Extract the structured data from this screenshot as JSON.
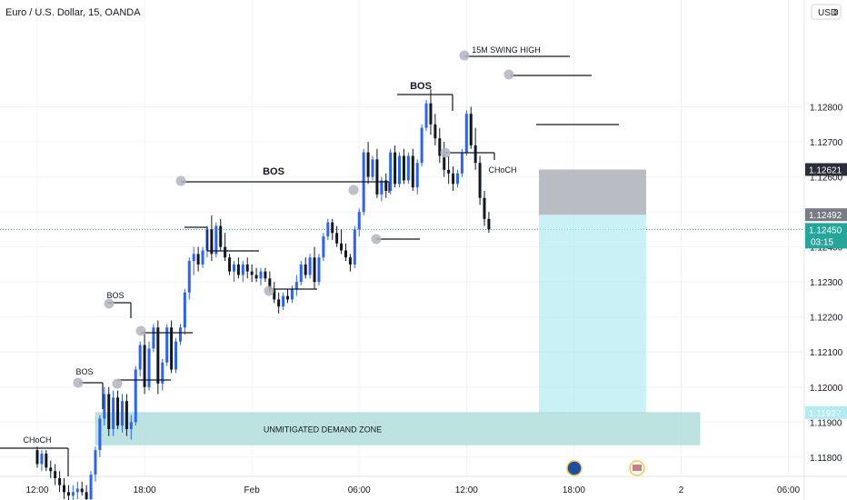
{
  "chart_data": {
    "type": "candlestick",
    "title": "Euro / U.S. Dollar, 15, OANDA",
    "currency": "USD",
    "currency_badge": "0",
    "ylim": [
      1.11745,
      1.13105
    ],
    "grid": true,
    "y_ticks": [
      {
        "label": "1.12800",
        "v": 1.128
      },
      {
        "label": "1.12700",
        "v": 1.127
      },
      {
        "label": "1.12600",
        "v": 1.126
      },
      {
        "label": "1.12400",
        "v": 1.124
      },
      {
        "label": "1.12300",
        "v": 1.123
      },
      {
        "label": "1.12200",
        "v": 1.122
      },
      {
        "label": "1.12100",
        "v": 1.121
      },
      {
        "label": "1.12000",
        "v": 1.12
      },
      {
        "label": "1.11900",
        "v": 1.119
      },
      {
        "label": "1.11800",
        "v": 1.118
      }
    ],
    "x_ticks": [
      {
        "label": "12:00",
        "bar": 0
      },
      {
        "label": "18:00",
        "bar": 24
      },
      {
        "label": "Feb",
        "bar": 48
      },
      {
        "label": "06:00",
        "bar": 72
      },
      {
        "label": "12:00",
        "bar": 96
      },
      {
        "label": "18:00",
        "bar": 120
      },
      {
        "label": "2",
        "bar": 144
      },
      {
        "label": "06:00",
        "bar": 168
      }
    ],
    "candles": [
      [
        1.1182,
        1.1183,
        1.1177,
        1.1178
      ],
      [
        1.1178,
        1.1182,
        1.1176,
        1.1181
      ],
      [
        1.1181,
        1.1182,
        1.1176,
        1.1177
      ],
      [
        1.1177,
        1.1179,
        1.1174,
        1.1176
      ],
      [
        1.1176,
        1.1178,
        1.1172,
        1.1174
      ],
      [
        1.1174,
        1.1176,
        1.117,
        1.1172
      ],
      [
        1.1172,
        1.1174,
        1.1168,
        1.117
      ],
      [
        1.117,
        1.1172,
        1.1167,
        1.1169
      ],
      [
        1.1169,
        1.1172,
        1.1167,
        1.117
      ],
      [
        1.117,
        1.1173,
        1.1168,
        1.1171
      ],
      [
        1.1171,
        1.1173,
        1.1169,
        1.117
      ],
      [
        1.117,
        1.1172,
        1.1167,
        1.1168
      ],
      [
        1.1168,
        1.1176,
        1.1166,
        1.1175
      ],
      [
        1.1175,
        1.1183,
        1.1173,
        1.1182
      ],
      [
        1.1182,
        1.1192,
        1.118,
        1.1191
      ],
      [
        1.1191,
        1.12,
        1.1189,
        1.1198
      ],
      [
        1.1198,
        1.12,
        1.1186,
        1.1188
      ],
      [
        1.1188,
        1.1199,
        1.1186,
        1.1197
      ],
      [
        1.1197,
        1.1199,
        1.1188,
        1.1189
      ],
      [
        1.1189,
        1.1198,
        1.1187,
        1.1196
      ],
      [
        1.1196,
        1.1198,
        1.1186,
        1.1188
      ],
      [
        1.1188,
        1.1192,
        1.1185,
        1.119
      ],
      [
        1.119,
        1.1206,
        1.1189,
        1.1205
      ],
      [
        1.1205,
        1.1213,
        1.1203,
        1.1212
      ],
      [
        1.1212,
        1.1216,
        1.1198,
        1.12
      ],
      [
        1.12,
        1.1213,
        1.1199,
        1.1211
      ],
      [
        1.1211,
        1.1218,
        1.121,
        1.1217
      ],
      [
        1.1217,
        1.1219,
        1.1198,
        1.1201
      ],
      [
        1.1201,
        1.1208,
        1.1199,
        1.1207
      ],
      [
        1.1207,
        1.1218,
        1.1206,
        1.1217
      ],
      [
        1.1217,
        1.1219,
        1.1204,
        1.1205
      ],
      [
        1.1205,
        1.1214,
        1.1204,
        1.1213
      ],
      [
        1.1213,
        1.1218,
        1.1212,
        1.1217
      ],
      [
        1.1217,
        1.1228,
        1.1215,
        1.1227
      ],
      [
        1.1227,
        1.1237,
        1.1225,
        1.1236
      ],
      [
        1.1236,
        1.124,
        1.1232,
        1.1238
      ],
      [
        1.1238,
        1.124,
        1.1233,
        1.1235
      ],
      [
        1.1235,
        1.124,
        1.1234,
        1.1239
      ],
      [
        1.1239,
        1.1246,
        1.1237,
        1.1245
      ],
      [
        1.1245,
        1.1249,
        1.1236,
        1.1238
      ],
      [
        1.1238,
        1.1247,
        1.1237,
        1.1246
      ],
      [
        1.1246,
        1.1248,
        1.1239,
        1.124
      ],
      [
        1.124,
        1.1244,
        1.1236,
        1.1237
      ],
      [
        1.1237,
        1.1238,
        1.1232,
        1.1233
      ],
      [
        1.1233,
        1.1236,
        1.123,
        1.1235
      ],
      [
        1.1235,
        1.1237,
        1.1231,
        1.1232
      ],
      [
        1.1232,
        1.1236,
        1.123,
        1.1235
      ],
      [
        1.1235,
        1.1237,
        1.1231,
        1.1233
      ],
      [
        1.1233,
        1.1235,
        1.123,
        1.1232
      ],
      [
        1.1232,
        1.1234,
        1.123,
        1.1231
      ],
      [
        1.1231,
        1.1234,
        1.1229,
        1.1233
      ],
      [
        1.1233,
        1.1234,
        1.123,
        1.1231
      ],
      [
        1.1231,
        1.1233,
        1.1227,
        1.1228
      ],
      [
        1.1228,
        1.123,
        1.1224,
        1.1225
      ],
      [
        1.1225,
        1.1227,
        1.1221,
        1.1223
      ],
      [
        1.1223,
        1.1227,
        1.1222,
        1.1226
      ],
      [
        1.1226,
        1.1228,
        1.1224,
        1.1225
      ],
      [
        1.1225,
        1.1229,
        1.1224,
        1.1228
      ],
      [
        1.1228,
        1.1232,
        1.1226,
        1.123
      ],
      [
        1.123,
        1.1236,
        1.1229,
        1.1235
      ],
      [
        1.1235,
        1.1237,
        1.1231,
        1.1232
      ],
      [
        1.1232,
        1.1238,
        1.1231,
        1.1237
      ],
      [
        1.1237,
        1.124,
        1.1228,
        1.123
      ],
      [
        1.123,
        1.1238,
        1.1229,
        1.1237
      ],
      [
        1.1237,
        1.1244,
        1.1236,
        1.1243
      ],
      [
        1.1243,
        1.1248,
        1.1242,
        1.1247
      ],
      [
        1.1247,
        1.1248,
        1.1242,
        1.1244
      ],
      [
        1.1244,
        1.1246,
        1.124,
        1.1241
      ],
      [
        1.1241,
        1.1245,
        1.1238,
        1.1239
      ],
      [
        1.1239,
        1.1241,
        1.1236,
        1.1237
      ],
      [
        1.1237,
        1.1238,
        1.1233,
        1.1235
      ],
      [
        1.1235,
        1.1246,
        1.1234,
        1.1245
      ],
      [
        1.1245,
        1.1251,
        1.1243,
        1.125
      ],
      [
        1.125,
        1.1268,
        1.1249,
        1.1267
      ],
      [
        1.1267,
        1.127,
        1.1258,
        1.126
      ],
      [
        1.126,
        1.1266,
        1.1259,
        1.1265
      ],
      [
        1.1265,
        1.1268,
        1.1254,
        1.1255
      ],
      [
        1.1255,
        1.126,
        1.1253,
        1.1259
      ],
      [
        1.1259,
        1.1261,
        1.1254,
        1.1256
      ],
      [
        1.1256,
        1.1268,
        1.1255,
        1.1267
      ],
      [
        1.1267,
        1.1269,
        1.1257,
        1.1258
      ],
      [
        1.1258,
        1.1267,
        1.1257,
        1.1266
      ],
      [
        1.1266,
        1.1268,
        1.1258,
        1.1259
      ],
      [
        1.1259,
        1.1267,
        1.1258,
        1.1266
      ],
      [
        1.1266,
        1.1268,
        1.1256,
        1.1257
      ],
      [
        1.1257,
        1.1265,
        1.1255,
        1.1264
      ],
      [
        1.1264,
        1.1275,
        1.1263,
        1.1274
      ],
      [
        1.1274,
        1.1282,
        1.1273,
        1.1281
      ],
      [
        1.1281,
        1.1285,
        1.1272,
        1.1275
      ],
      [
        1.1275,
        1.1278,
        1.1269,
        1.1271
      ],
      [
        1.1271,
        1.1274,
        1.1264,
        1.1266
      ],
      [
        1.1266,
        1.127,
        1.126,
        1.1262
      ],
      [
        1.1262,
        1.1266,
        1.1258,
        1.1261
      ],
      [
        1.1261,
        1.1263,
        1.1256,
        1.1258
      ],
      [
        1.1258,
        1.1262,
        1.1257,
        1.1261
      ],
      [
        1.1261,
        1.1268,
        1.126,
        1.1267
      ],
      [
        1.1267,
        1.1279,
        1.1266,
        1.1278
      ],
      [
        1.1278,
        1.128,
        1.1268,
        1.1269
      ],
      [
        1.1269,
        1.1274,
        1.1262,
        1.1264
      ],
      [
        1.1264,
        1.1266,
        1.1252,
        1.1254
      ],
      [
        1.1254,
        1.1256,
        1.1246,
        1.1248
      ],
      [
        1.1248,
        1.125,
        1.1244,
        1.1245
      ]
    ],
    "series_colors": {
      "up": "#2962ff",
      "down": "#131722"
    },
    "annotations": {
      "bos_labels": [
        {
          "text": "BOS",
          "bar": 7
        },
        {
          "text": "BOS",
          "bar": 12
        },
        {
          "text": "BOS",
          "bar": 35
        },
        {
          "text": "BOS",
          "bar": 76
        }
      ],
      "choch_labels": [
        {
          "text": "CHoCH",
          "bar": -1
        },
        {
          "text": "CHoCH",
          "bar": 99
        }
      ],
      "swing_high_label": "15M  SWING HIGH",
      "demand_zone_label": "UNMITIGATED DEMAND ZONE",
      "demand_zone": {
        "top": 1.11927,
        "bottom": 1.11835,
        "color": "#b2dfdb"
      },
      "supply_zone": {
        "top": 1.12621,
        "bottom": 1.12492,
        "color": "#b2b5be"
      },
      "target_zone": {
        "top": 1.12492,
        "bottom": 1.11927,
        "color": "#b2ebf2"
      }
    },
    "price_tags": [
      {
        "label": "1.12621",
        "v": 1.12621,
        "color": "#2a2e39"
      },
      {
        "label": "1.12492",
        "v": 1.12492,
        "color": "#787b86"
      },
      {
        "label": "1.12450",
        "v": 1.1245,
        "color": "#26a69a"
      },
      {
        "label": "1.11927",
        "v": 1.11927,
        "color": "#b2ebf2"
      }
    ],
    "countdown": "03:15",
    "last_price": 1.1245,
    "event_icons": [
      "eu-flag-icon",
      "us-flag-icon"
    ]
  }
}
